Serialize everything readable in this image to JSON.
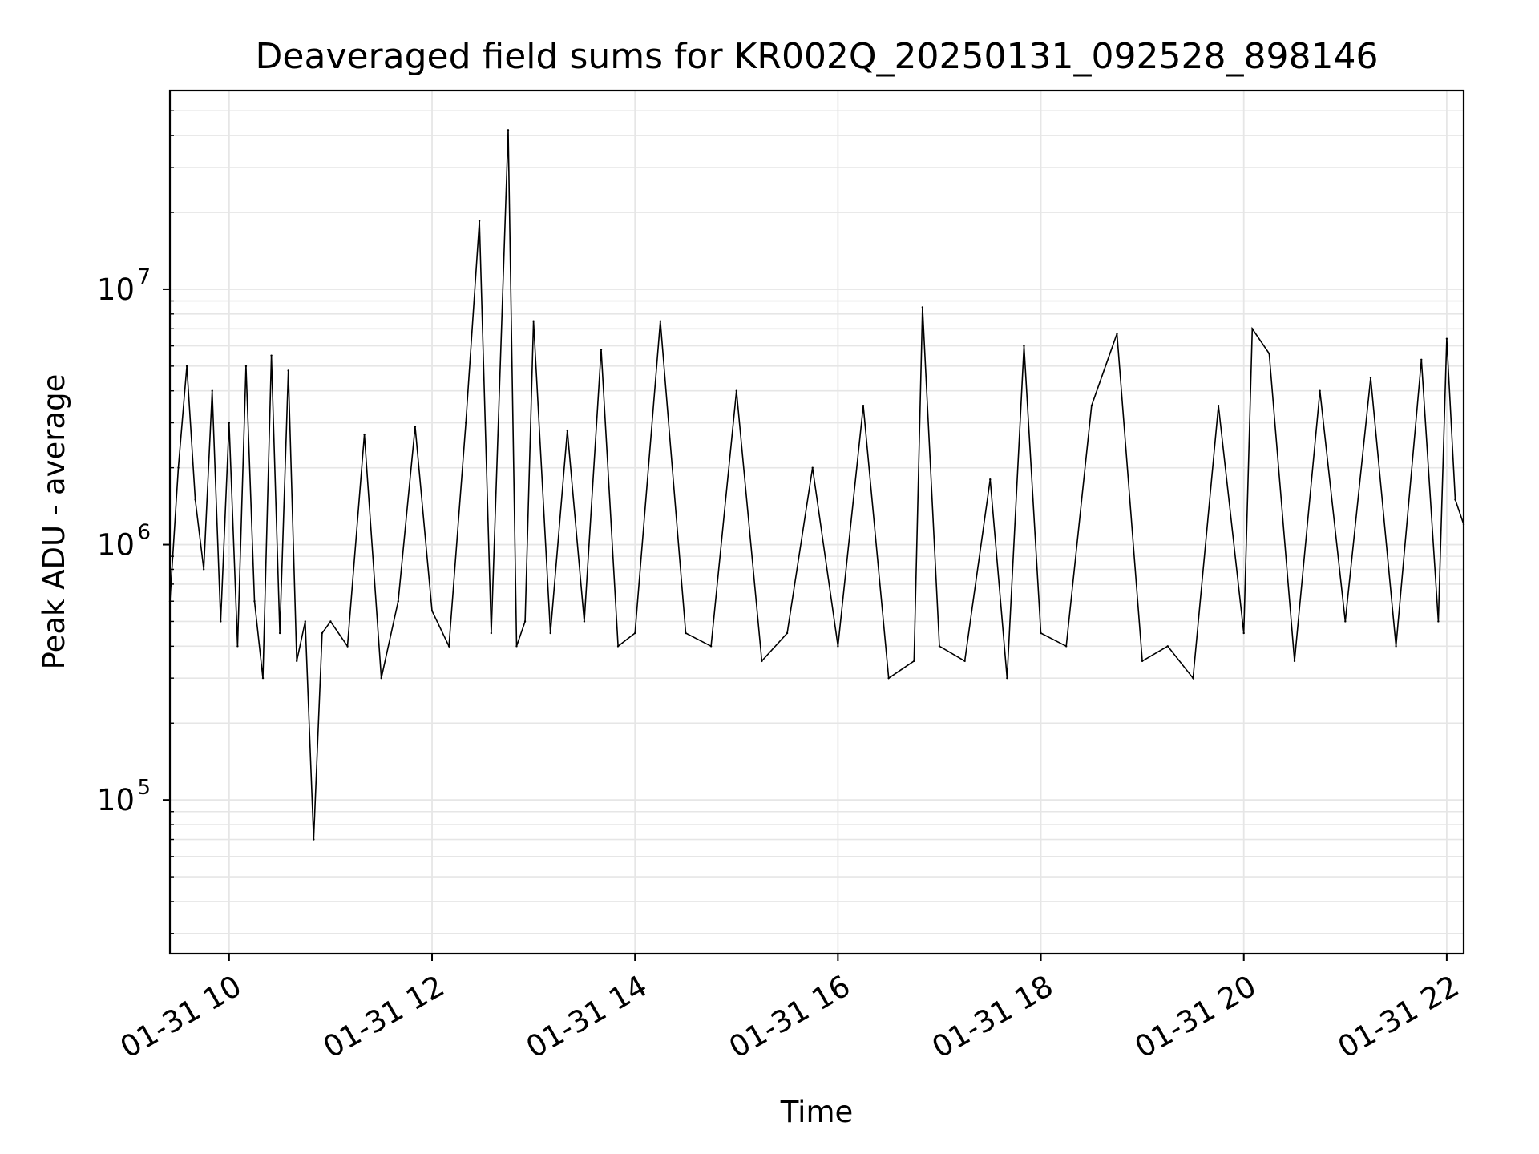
{
  "chart_data": {
    "type": "line",
    "title": "Deaveraged field sums for KR002Q_20250131_092528_898146",
    "xlabel": "Time",
    "ylabel": "Peak ADU - average",
    "yscale": "log",
    "ylim": [
      25000,
      60000000
    ],
    "xlim": [
      "01-31 09:25",
      "01-31 22:10"
    ],
    "grid": true,
    "line_color": "#000000",
    "grid_color": "#e6e6e6",
    "x_ticks": [
      {
        "t": "01-31 10:00",
        "label": "01-31 10"
      },
      {
        "t": "01-31 12:00",
        "label": "01-31 12"
      },
      {
        "t": "01-31 14:00",
        "label": "01-31 14"
      },
      {
        "t": "01-31 16:00",
        "label": "01-31 16"
      },
      {
        "t": "01-31 18:00",
        "label": "01-31 18"
      },
      {
        "t": "01-31 20:00",
        "label": "01-31 20"
      },
      {
        "t": "01-31 22:00",
        "label": "01-31 22"
      }
    ],
    "y_ticks": [
      {
        "value": 100000,
        "base": "10",
        "exp": "5"
      },
      {
        "value": 1000000,
        "base": "10",
        "exp": "6"
      },
      {
        "value": 10000000,
        "base": "10",
        "exp": "7"
      }
    ],
    "series": [
      {
        "x": [
          "01-31 09:25",
          "01-31 09:30",
          "01-31 09:35",
          "01-31 09:40",
          "01-31 09:45",
          "01-31 09:50",
          "01-31 09:55",
          "01-31 10:00",
          "01-31 10:05",
          "01-31 10:10",
          "01-31 10:15",
          "01-31 10:20",
          "01-31 10:25",
          "01-31 10:30",
          "01-31 10:35",
          "01-31 10:40",
          "01-31 10:45",
          "01-31 10:50",
          "01-31 10:55",
          "01-31 11:00",
          "01-31 11:10",
          "01-31 11:20",
          "01-31 11:30",
          "01-31 11:40",
          "01-31 11:50",
          "01-31 12:00",
          "01-31 12:10",
          "01-31 12:20",
          "01-31 12:28",
          "01-31 12:35",
          "01-31 12:45",
          "01-31 12:50",
          "01-31 12:55",
          "01-31 13:00",
          "01-31 13:10",
          "01-31 13:20",
          "01-31 13:30",
          "01-31 13:40",
          "01-31 13:50",
          "01-31 14:00",
          "01-31 14:15",
          "01-31 14:30",
          "01-31 14:45",
          "01-31 15:00",
          "01-31 15:15",
          "01-31 15:30",
          "01-31 15:45",
          "01-31 16:00",
          "01-31 16:15",
          "01-31 16:30",
          "01-31 16:45",
          "01-31 16:50",
          "01-31 17:00",
          "01-31 17:15",
          "01-31 17:30",
          "01-31 17:40",
          "01-31 17:50",
          "01-31 18:00",
          "01-31 18:15",
          "01-31 18:30",
          "01-31 18:45",
          "01-31 19:00",
          "01-31 19:15",
          "01-31 19:30",
          "01-31 19:45",
          "01-31 20:00",
          "01-31 20:05",
          "01-31 20:15",
          "01-31 20:30",
          "01-31 20:45",
          "01-31 21:00",
          "01-31 21:15",
          "01-31 21:30",
          "01-31 21:45",
          "01-31 21:55",
          "01-31 22:00",
          "01-31 22:05",
          "01-31 22:10"
        ],
        "y": [
          600000,
          2000000,
          5000000,
          1500000,
          800000,
          4000000,
          500000,
          3000000,
          400000,
          5000000,
          600000,
          300000,
          5500000,
          450000,
          4800000,
          350000,
          500000,
          70000,
          450000,
          500000,
          400000,
          2700000,
          300000,
          600000,
          2900000,
          550000,
          400000,
          3000000,
          18500000,
          450000,
          42000000,
          400000,
          500000,
          7500000,
          450000,
          2800000,
          500000,
          5800000,
          400000,
          450000,
          7500000,
          450000,
          400000,
          4000000,
          350000,
          450000,
          2000000,
          400000,
          3500000,
          300000,
          350000,
          8500000,
          400000,
          350000,
          1800000,
          300000,
          6000000,
          450000,
          400000,
          3500000,
          6700000,
          350000,
          400000,
          300000,
          3500000,
          450000,
          7000000,
          5600000,
          350000,
          4000000,
          500000,
          4500000,
          400000,
          5300000,
          500000,
          6400000,
          1500000,
          1200000
        ]
      }
    ]
  }
}
